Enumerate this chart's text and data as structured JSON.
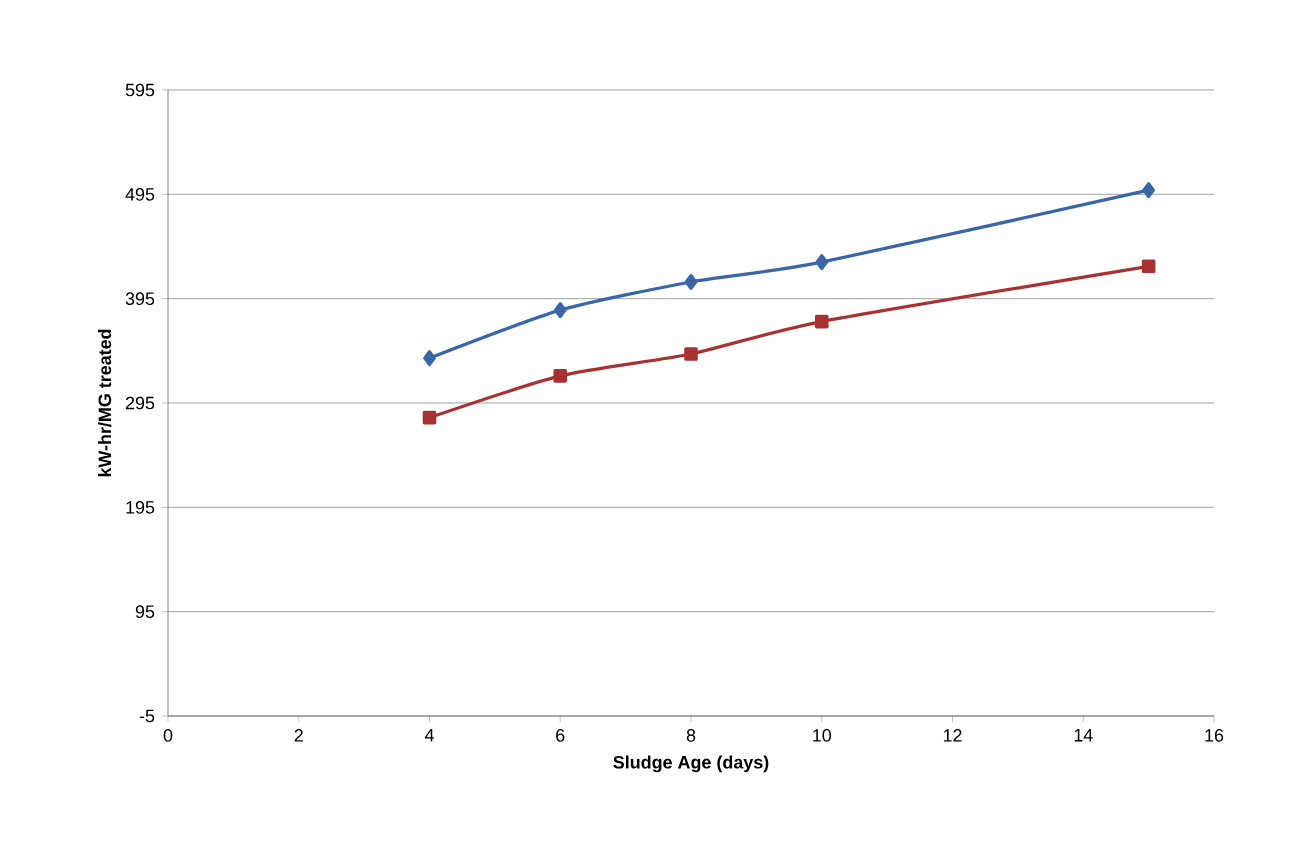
{
  "chart_data": {
    "type": "line",
    "xlabel": "Sludge Age (days)",
    "ylabel": "kW-hr/MG treated",
    "xlim": [
      0,
      16
    ],
    "xticks": [
      0,
      2,
      4,
      6,
      8,
      10,
      12,
      14,
      16
    ],
    "ylim": [
      -5,
      595
    ],
    "yticks": [
      -5,
      95,
      195,
      295,
      395,
      495,
      595
    ],
    "grid": "y",
    "series": [
      {
        "color": "#3a66a8",
        "marker": "diamond",
        "x": [
          4,
          6,
          8,
          10,
          15
        ],
        "values": [
          338,
          384,
          411,
          430,
          499
        ]
      },
      {
        "color": "#a83232",
        "marker": "square",
        "x": [
          4,
          6,
          8,
          10,
          15
        ],
        "values": [
          281,
          321,
          342,
          373,
          426
        ]
      }
    ]
  }
}
